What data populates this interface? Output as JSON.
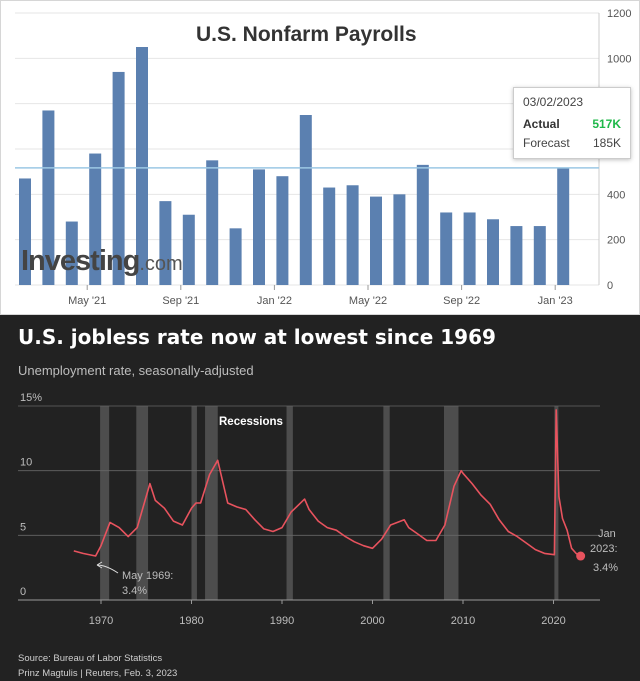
{
  "payrolls": {
    "title": "U.S. Nonfarm Payrolls",
    "logo_main": "Investing",
    "logo_suffix": ".com",
    "tooltip": {
      "date": "03/02/2023",
      "actual_label": "Actual",
      "actual_value": "517K",
      "forecast_label": "Forecast",
      "forecast_value": "185K"
    },
    "colors": {
      "bar": "#5b80b0",
      "hline": "#9cc8e4",
      "actual": "#1fb84a"
    }
  },
  "jobless": {
    "title": "U.S. jobless rate now at lowest since 1969",
    "subtitle": "Unemployment rate, seasonally-adjusted",
    "recessions_label": "Recessions",
    "ann_1969_a": "May 1969:",
    "ann_1969_b": "3.4%",
    "ann_2023_a": "Jan",
    "ann_2023_b": "2023:",
    "ann_2023_c": "3.4%",
    "source": "Source: Bureau of Labor Statistics",
    "credit": "Prinz Magtulis | Reuters, Feb. 3, 2023",
    "colors": {
      "line": "#e8535e",
      "recession": "#555555",
      "grid": "#666666",
      "text": "#bdbdbd"
    }
  },
  "chart_data": [
    {
      "type": "bar",
      "title": "U.S. Nonfarm Payrolls",
      "x_tick_labels": [
        "May '21",
        "Sep '21",
        "Jan '22",
        "May '22",
        "Sep '22",
        "Jan '23"
      ],
      "categories": [
        "Feb '21",
        "Mar '21",
        "Apr '21",
        "May '21",
        "Jun '21",
        "Jul '21",
        "Aug '21",
        "Sep '21",
        "Oct '21",
        "Nov '21",
        "Dec '21",
        "Jan '22",
        "Feb '22",
        "Mar '22",
        "Apr '22",
        "May '22",
        "Jun '22",
        "Jul '22",
        "Aug '22",
        "Sep '22",
        "Oct '22",
        "Nov '22",
        "Dec '22",
        "Jan '23"
      ],
      "values": [
        470,
        770,
        280,
        580,
        940,
        1050,
        370,
        310,
        550,
        250,
        510,
        480,
        750,
        430,
        440,
        390,
        400,
        530,
        320,
        320,
        290,
        260,
        260,
        517
      ],
      "reference_line": 517,
      "y_ticks": [
        0,
        200,
        400,
        600,
        800,
        1000,
        1200
      ],
      "ylim": [
        0,
        1200
      ],
      "y_axis_side": "right",
      "grid": true
    },
    {
      "type": "line",
      "title": "U.S. jobless rate now at lowest since 1969",
      "subtitle": "Unemployment rate, seasonally-adjusted",
      "x_ticks": [
        1970,
        1980,
        1990,
        2000,
        2010,
        2020
      ],
      "y_ticks": [
        0,
        5,
        10,
        15
      ],
      "y_tick_labels": [
        "0",
        "5",
        "10",
        "15%"
      ],
      "ylim": [
        0,
        15
      ],
      "xlim": [
        1967,
        2023.5
      ],
      "recessions": [
        [
          1969.9,
          1970.9
        ],
        [
          1973.9,
          1975.2
        ],
        [
          1980.0,
          1980.6
        ],
        [
          1981.5,
          1982.9
        ],
        [
          1990.5,
          1991.2
        ],
        [
          2001.2,
          2001.9
        ],
        [
          2007.9,
          2009.5
        ],
        [
          2020.1,
          2020.4
        ]
      ],
      "series": [
        {
          "x": [
            1967,
            1968,
            1969.4,
            1970,
            1971,
            1972,
            1973,
            1974,
            1975.4,
            1976,
            1977,
            1978,
            1979,
            1980,
            1980.5,
            1981,
            1982,
            1982.9,
            1984,
            1985,
            1986,
            1987,
            1988,
            1989,
            1990,
            1991,
            1992.5,
            1993,
            1994,
            1995,
            1996,
            1997,
            1998,
            1999,
            2000,
            2001,
            2002,
            2003.5,
            2004,
            2005,
            2006,
            2007,
            2008,
            2009,
            2009.8,
            2010,
            2011,
            2012,
            2013,
            2014,
            2015,
            2016,
            2017,
            2018,
            2019,
            2020.1,
            2020.3,
            2020.6,
            2021,
            2021.5,
            2022,
            2022.5,
            2023
          ],
          "values": [
            3.8,
            3.6,
            3.4,
            4.2,
            6.0,
            5.6,
            4.9,
            5.6,
            9.0,
            7.7,
            7.1,
            6.1,
            5.8,
            7.1,
            7.5,
            7.5,
            9.7,
            10.8,
            7.5,
            7.2,
            7.0,
            6.2,
            5.5,
            5.3,
            5.6,
            6.8,
            7.8,
            7.0,
            6.1,
            5.6,
            5.4,
            4.9,
            4.5,
            4.2,
            4.0,
            4.7,
            5.8,
            6.2,
            5.6,
            5.1,
            4.6,
            4.6,
            5.8,
            8.8,
            10.0,
            9.8,
            9.0,
            8.1,
            7.4,
            6.2,
            5.3,
            4.9,
            4.4,
            3.9,
            3.6,
            3.5,
            14.7,
            8.0,
            6.3,
            5.4,
            4.0,
            3.6,
            3.4
          ]
        }
      ],
      "annotations": [
        "May 1969: 3.4%",
        "Jan 2023: 3.4%"
      ]
    }
  ]
}
